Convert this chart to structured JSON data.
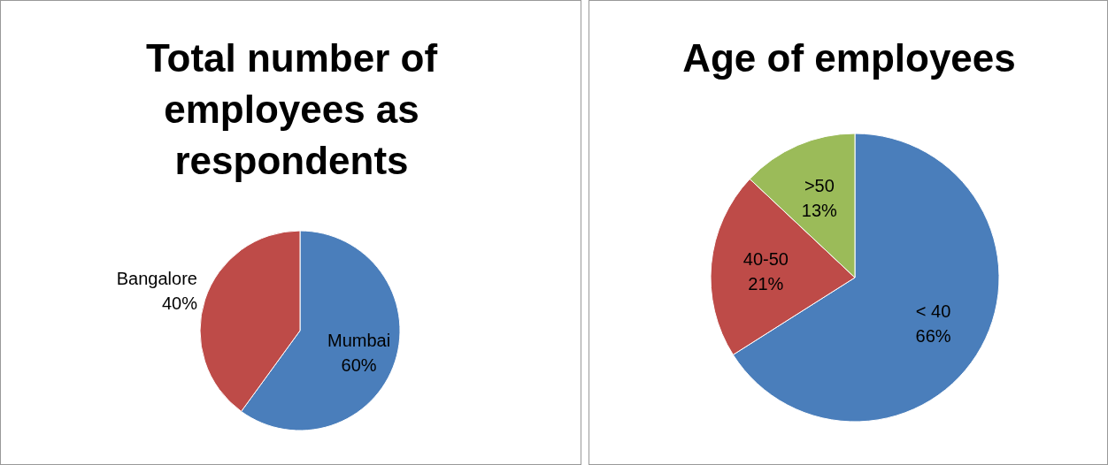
{
  "chart_data": [
    {
      "type": "pie",
      "title": "Total number of employees as respondents",
      "categories": [
        "Mumbai",
        "Bangalore"
      ],
      "values": [
        60,
        40
      ],
      "value_labels": [
        "60%",
        "40%"
      ],
      "colors": [
        "#4a7ebb",
        "#be4b48"
      ],
      "legend": false
    },
    {
      "type": "pie",
      "title": "Age of employees",
      "categories": [
        "< 40",
        "40-50",
        ">50"
      ],
      "values": [
        66,
        21,
        13
      ],
      "value_labels": [
        "66%",
        "21%",
        "13%"
      ],
      "colors": [
        "#4a7ebb",
        "#be4b48",
        "#9bbb59"
      ],
      "legend": false
    }
  ]
}
